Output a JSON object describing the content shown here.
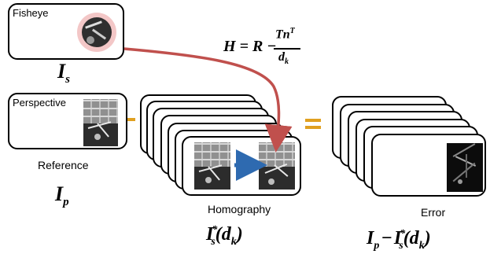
{
  "fisheye": {
    "label": "Fisheye",
    "symbol": "I",
    "subscript": "s"
  },
  "perspective": {
    "label": "Perspective",
    "caption": "Reference",
    "symbol": "I",
    "subscript": "p"
  },
  "homography": {
    "caption": "Homography",
    "symbol": "I",
    "subscript": "s",
    "star": "*",
    "arg": "(d",
    "arg_sub": "k",
    "arg_close": ")"
  },
  "error": {
    "caption": "Error",
    "lhs": "I",
    "lhs_sub": "p",
    "minus": "−",
    "rhs": "I",
    "rhs_sub": "s",
    "star": "*",
    "arg": "(d",
    "arg_sub": "k",
    "arg_close": ")"
  },
  "equation": {
    "H": "H",
    "eq": "=",
    "R": "R",
    "minus": "−",
    "num": "Tn",
    "num_sup": "T",
    "den": "d",
    "den_sub": "k"
  },
  "operators": {
    "minus_op": "-",
    "equals_op": "="
  },
  "colors": {
    "curve": "#c0504d",
    "accent": "#e0a020",
    "arrow_blue": "#2e6ab0"
  }
}
